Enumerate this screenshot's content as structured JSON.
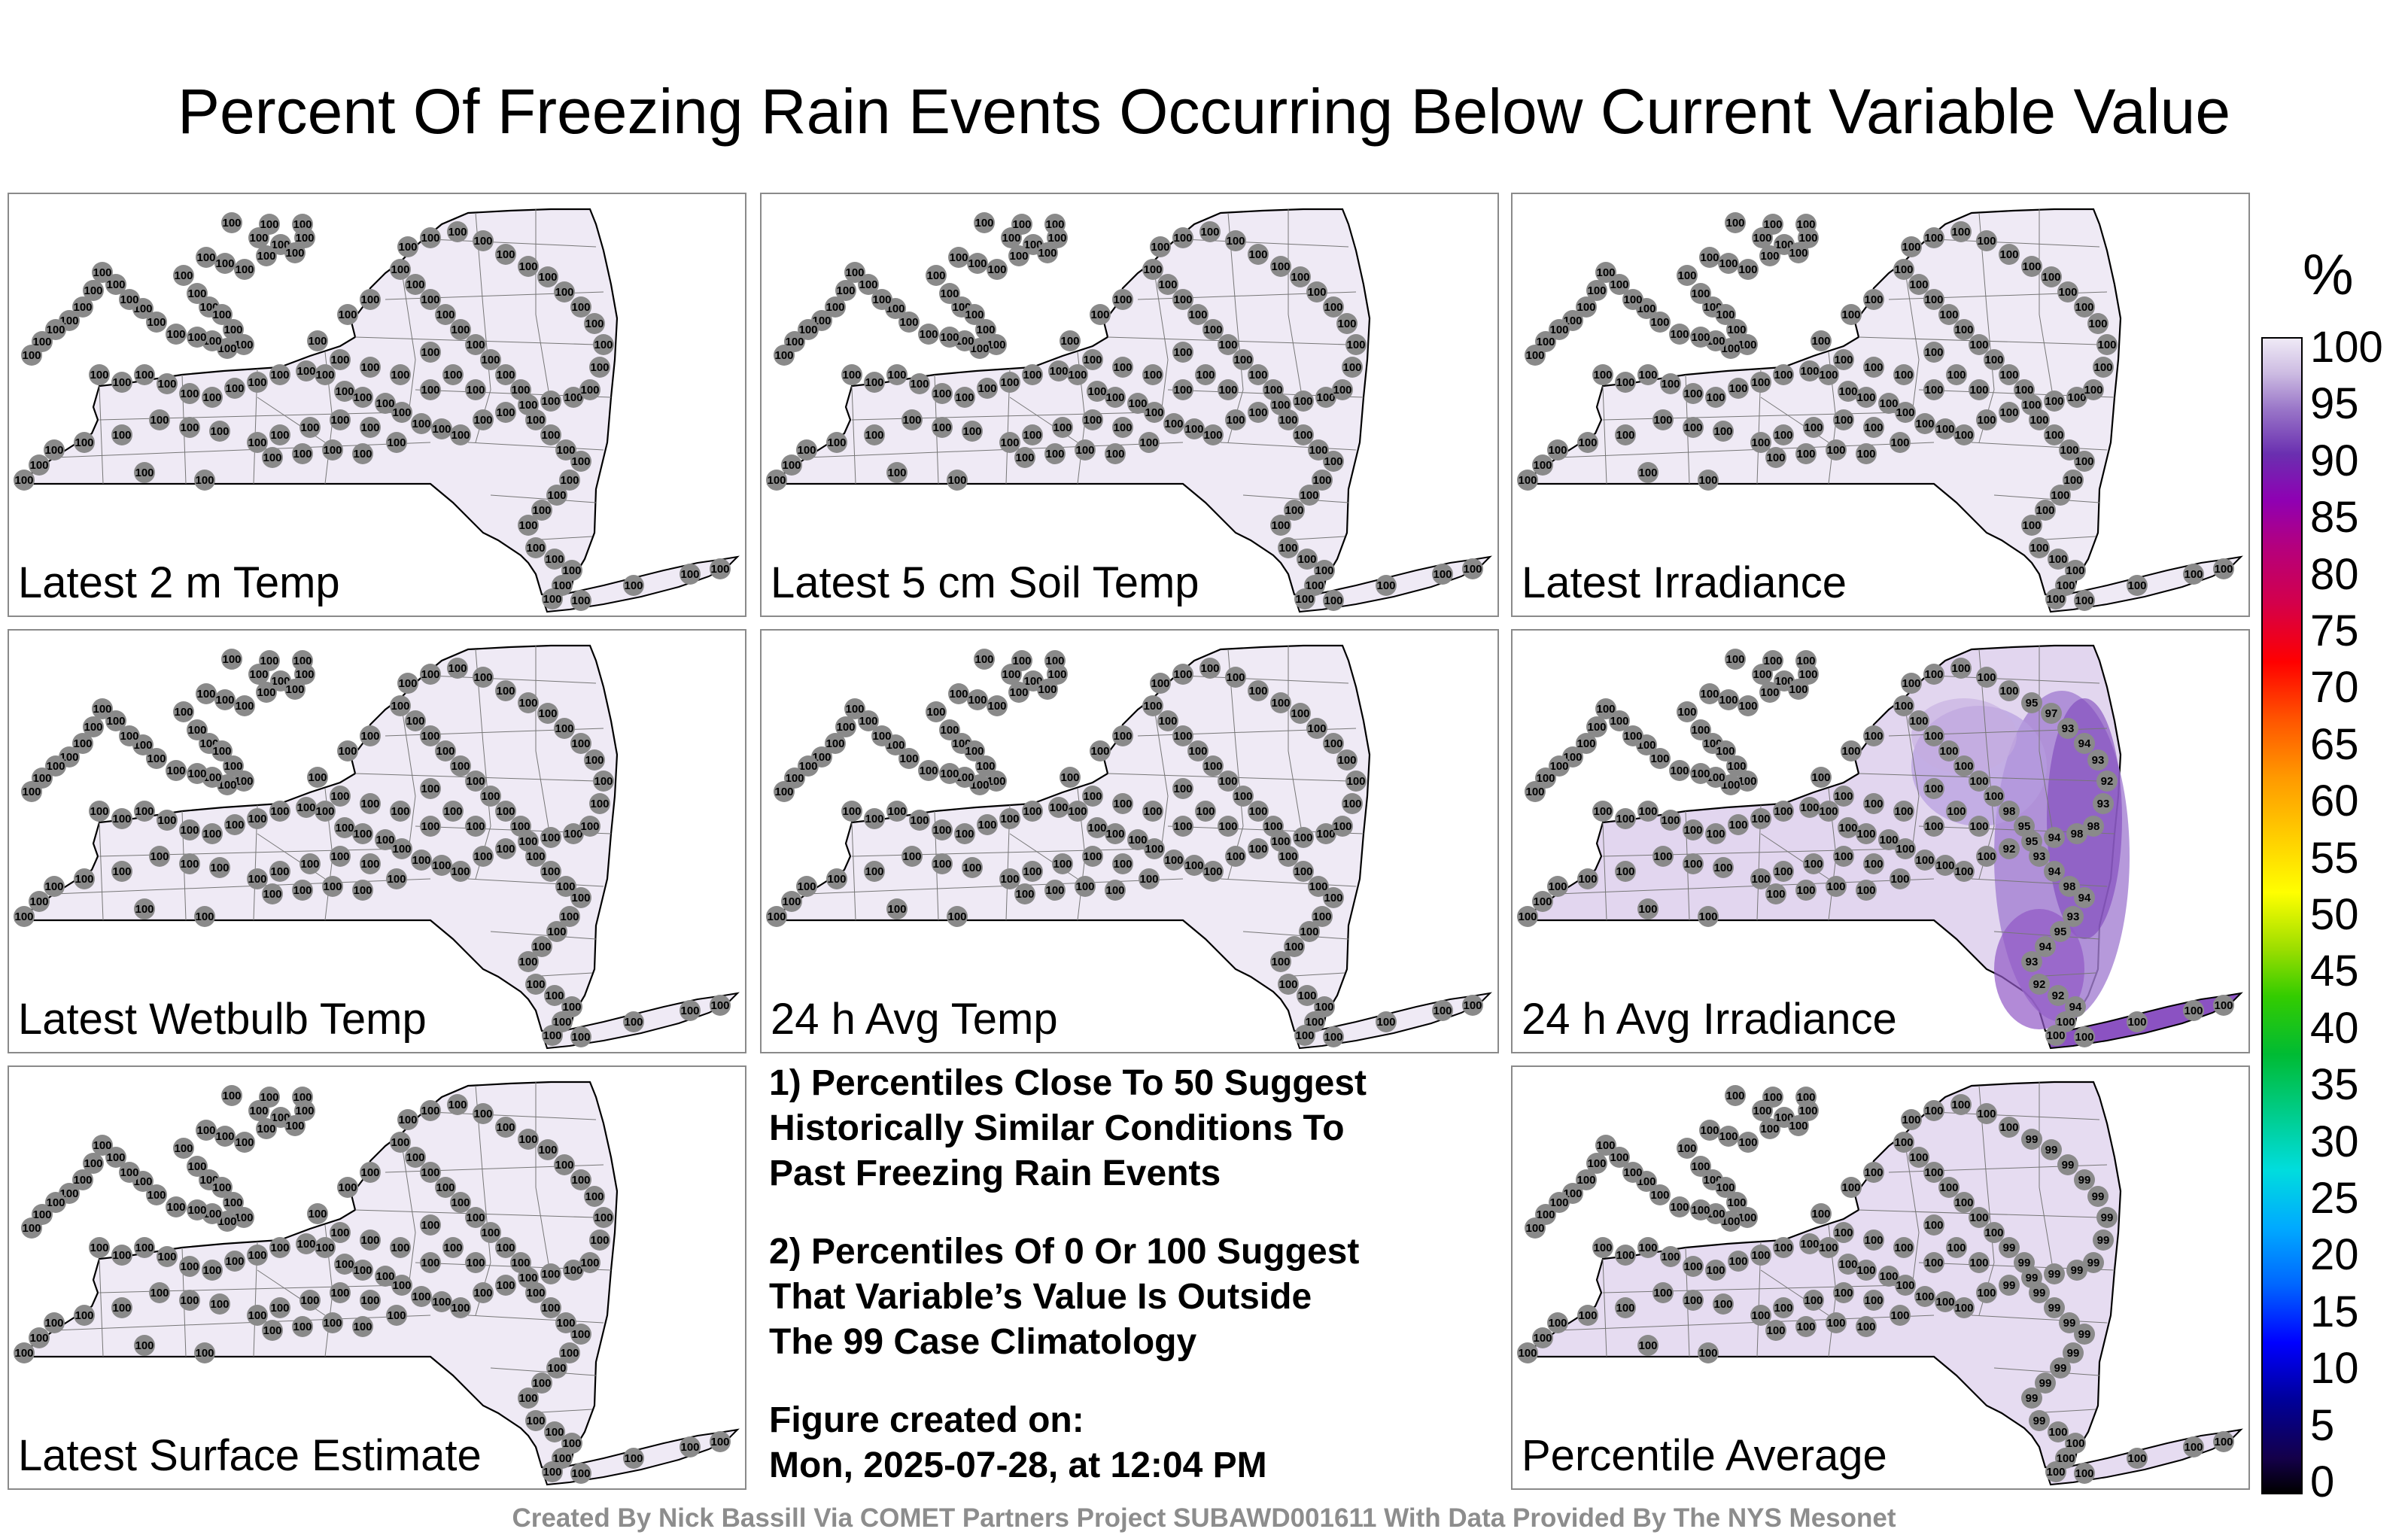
{
  "title": "Percent Of Freezing Rain Events Occurring Below Current Variable Value",
  "panels": [
    {
      "label": "Latest 2 m Temp",
      "default_value": "100",
      "shaded": false,
      "fill": "#efeaf5"
    },
    {
      "label": "Latest 5 cm Soil Temp",
      "default_value": "100",
      "shaded": false,
      "fill": "#efeaf5"
    },
    {
      "label": "Latest Irradiance",
      "default_value": "100",
      "shaded": false,
      "fill": "#efeaf5"
    },
    {
      "label": "Latest Wetbulb Temp",
      "default_value": "100",
      "shaded": false,
      "fill": "#efeaf5"
    },
    {
      "label": "24 h Avg Temp",
      "default_value": "100",
      "shaded": false,
      "fill": "#efeaf5"
    },
    {
      "label": "24 h Avg Irradiance",
      "default_value": "100",
      "shaded": true,
      "fill": "#e2d6ef",
      "east_values": [
        "92",
        "95",
        "94",
        "98",
        "98",
        "93",
        "92",
        "93",
        "94",
        "93",
        "97",
        "95",
        "98",
        "95",
        "93",
        "94",
        "98",
        "94",
        "93",
        "95",
        "94",
        "93",
        "92",
        "92",
        "94"
      ]
    },
    {
      "label": "Latest Surface Estimate",
      "default_value": "100",
      "shaded": false,
      "fill": "#efeaf5"
    },
    {
      "label": "Percentile Average",
      "default_value": "100",
      "shaded": false,
      "fill": "#e6dcf1",
      "east_values": [
        "99",
        "99",
        "99",
        "99",
        "99",
        "99",
        "99",
        "99",
        "99",
        "99",
        "99",
        "99",
        "99",
        "99",
        "99",
        "99",
        "99",
        "99",
        "99",
        "99",
        "99",
        "99",
        "99"
      ]
    }
  ],
  "notes": {
    "note1": "1) Percentiles Close To 50 Suggest\nHistorically Similar Conditions To\nPast Freezing Rain Events",
    "note2": "2) Percentiles Of 0 Or 100 Suggest\nThat Variable’s Value Is Outside\nThe 99 Case Climatology",
    "note3": "Figure created on:\nMon, 2025-07-28, at 12:04 PM"
  },
  "colorbar": {
    "unit": "%",
    "ticks": [
      "100",
      "95",
      "90",
      "85",
      "80",
      "75",
      "70",
      "65",
      "60",
      "55",
      "50",
      "45",
      "40",
      "35",
      "30",
      "25",
      "20",
      "15",
      "10",
      "5",
      "0"
    ]
  },
  "credit": "Created By Nick Bassill Via COMET Partners Project SUBAWD001611 With Data Provided By The NYS Mesonet"
}
